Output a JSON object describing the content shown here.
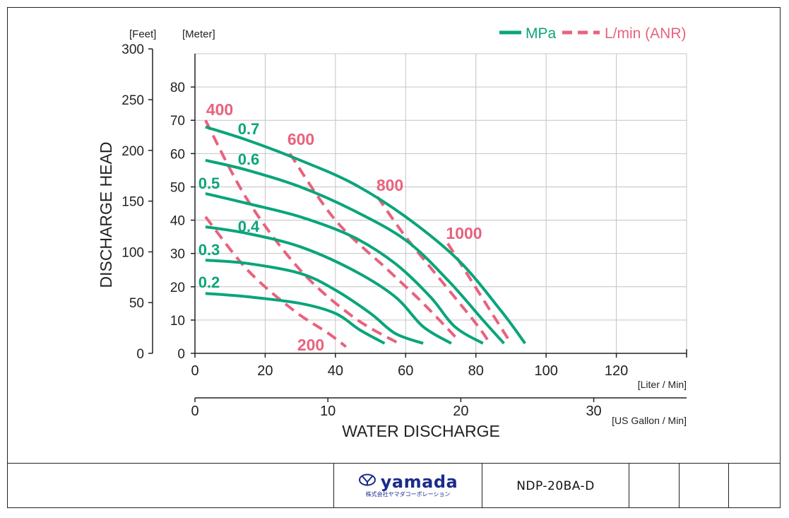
{
  "chart_data": {
    "type": "line",
    "legend": {
      "position": "top-right",
      "entries": [
        {
          "label": "MPa",
          "style": "solid",
          "color": "#0aa57a"
        },
        {
          "label": "L/min (ANR)",
          "style": "dashed",
          "color": "#e8627e"
        }
      ]
    },
    "ylabel": "DISCHARGE HEAD",
    "ylabel_feet_unit": "[Feet]",
    "ylabel_meter_unit": "[Meter]",
    "xlabel": "WATER DISCHARGE",
    "xlabel_liter_unit": "[Liter / Min]",
    "xlabel_gallon_unit": "[US Gallon / Min]",
    "x_liter_ticks": [
      "0",
      "20",
      "40",
      "60",
      "80",
      "100",
      "120"
    ],
    "x_gallon_ticks": [
      "0",
      "10",
      "20",
      "30"
    ],
    "y_meter_ticks": [
      "0",
      "10",
      "20",
      "30",
      "40",
      "50",
      "60",
      "70",
      "80"
    ],
    "y_feet_ticks": [
      "0",
      "50",
      "100",
      "150",
      "200",
      "250",
      "300"
    ],
    "xlim": [
      0,
      140
    ],
    "ylim_meter": [
      0,
      90
    ],
    "grid": true,
    "pressure_series": [
      {
        "name": "0.7",
        "points": [
          [
            3,
            68
          ],
          [
            15,
            64
          ],
          [
            30,
            58
          ],
          [
            45,
            51
          ],
          [
            60,
            41
          ],
          [
            75,
            28
          ],
          [
            87,
            13
          ],
          [
            94,
            3
          ]
        ]
      },
      {
        "name": "0.6",
        "points": [
          [
            3,
            58
          ],
          [
            15,
            55
          ],
          [
            30,
            50
          ],
          [
            45,
            43
          ],
          [
            60,
            34
          ],
          [
            72,
            22
          ],
          [
            82,
            10
          ],
          [
            88,
            3
          ]
        ]
      },
      {
        "name": "0.5",
        "points": [
          [
            3,
            48
          ],
          [
            15,
            45
          ],
          [
            30,
            41
          ],
          [
            45,
            35
          ],
          [
            57,
            27
          ],
          [
            67,
            17
          ],
          [
            74,
            8
          ],
          [
            82,
            3
          ]
        ]
      },
      {
        "name": "0.4",
        "points": [
          [
            3,
            38
          ],
          [
            15,
            36
          ],
          [
            30,
            32
          ],
          [
            45,
            25
          ],
          [
            57,
            17
          ],
          [
            65,
            8
          ],
          [
            73,
            3
          ]
        ]
      },
      {
        "name": "0.3",
        "points": [
          [
            3,
            28
          ],
          [
            15,
            27
          ],
          [
            30,
            24
          ],
          [
            40,
            19
          ],
          [
            50,
            12
          ],
          [
            57,
            6
          ],
          [
            65,
            3
          ]
        ]
      },
      {
        "name": "0.2",
        "points": [
          [
            3,
            18
          ],
          [
            15,
            17
          ],
          [
            30,
            15
          ],
          [
            40,
            12
          ],
          [
            47,
            7
          ],
          [
            54,
            3
          ]
        ]
      }
    ],
    "air_series": [
      {
        "name": "400",
        "points": [
          [
            3,
            70
          ],
          [
            15,
            46
          ],
          [
            30,
            25
          ],
          [
            45,
            11
          ],
          [
            58,
            3
          ]
        ]
      },
      {
        "name": "600",
        "points": [
          [
            27,
            60
          ],
          [
            40,
            40
          ],
          [
            55,
            25
          ],
          [
            65,
            15
          ],
          [
            75,
            4
          ]
        ]
      },
      {
        "name": "800",
        "points": [
          [
            52,
            47
          ],
          [
            60,
            35
          ],
          [
            70,
            22
          ],
          [
            80,
            9
          ],
          [
            84,
            3
          ]
        ]
      },
      {
        "name": "1000",
        "points": [
          [
            72,
            33
          ],
          [
            78,
            23
          ],
          [
            84,
            13
          ],
          [
            90,
            3
          ]
        ]
      },
      {
        "name": "200",
        "points": [
          [
            3,
            41
          ],
          [
            15,
            25
          ],
          [
            28,
            13
          ],
          [
            38,
            6
          ],
          [
            43,
            2
          ]
        ]
      }
    ]
  },
  "footer": {
    "brand_name": "yamada",
    "brand_subtitle": "株式会社ヤマダコーポレーション",
    "model": "NDP-20BA-D"
  }
}
